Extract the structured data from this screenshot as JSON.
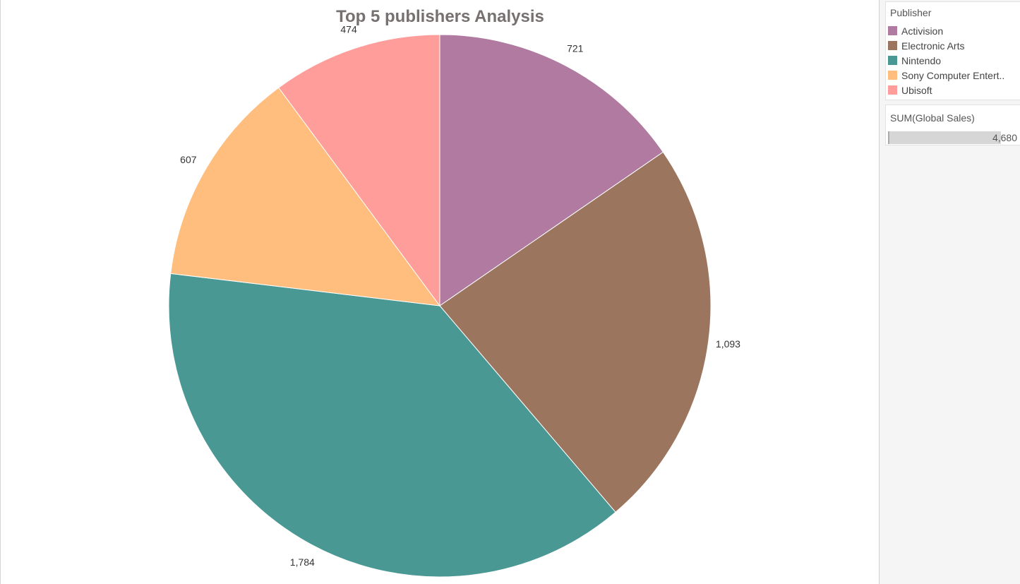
{
  "chart_data": {
    "type": "pie",
    "title": "Top 5 publishers Analysis",
    "slices": [
      {
        "label": "Activision",
        "value": 721,
        "value_label": "721",
        "color": "#b07aa1"
      },
      {
        "label": "Electronic Arts",
        "value": 1093,
        "value_label": "1,093",
        "color": "#9c755f"
      },
      {
        "label": "Nintendo",
        "value": 1784,
        "value_label": "1,784",
        "color": "#499894"
      },
      {
        "label": "Sony Computer Entert..",
        "value": 607,
        "value_label": "607",
        "color": "#ffbe7d"
      },
      {
        "label": "Ubisoft",
        "value": 474,
        "value_label": "474",
        "color": "#ff9d9a"
      }
    ],
    "start_angle_deg": 0,
    "direction": "clockwise",
    "legend_position": "right"
  },
  "legend": {
    "title": "Publisher"
  },
  "size_legend": {
    "title": "SUM(Global Sales)",
    "value": "4,680"
  }
}
